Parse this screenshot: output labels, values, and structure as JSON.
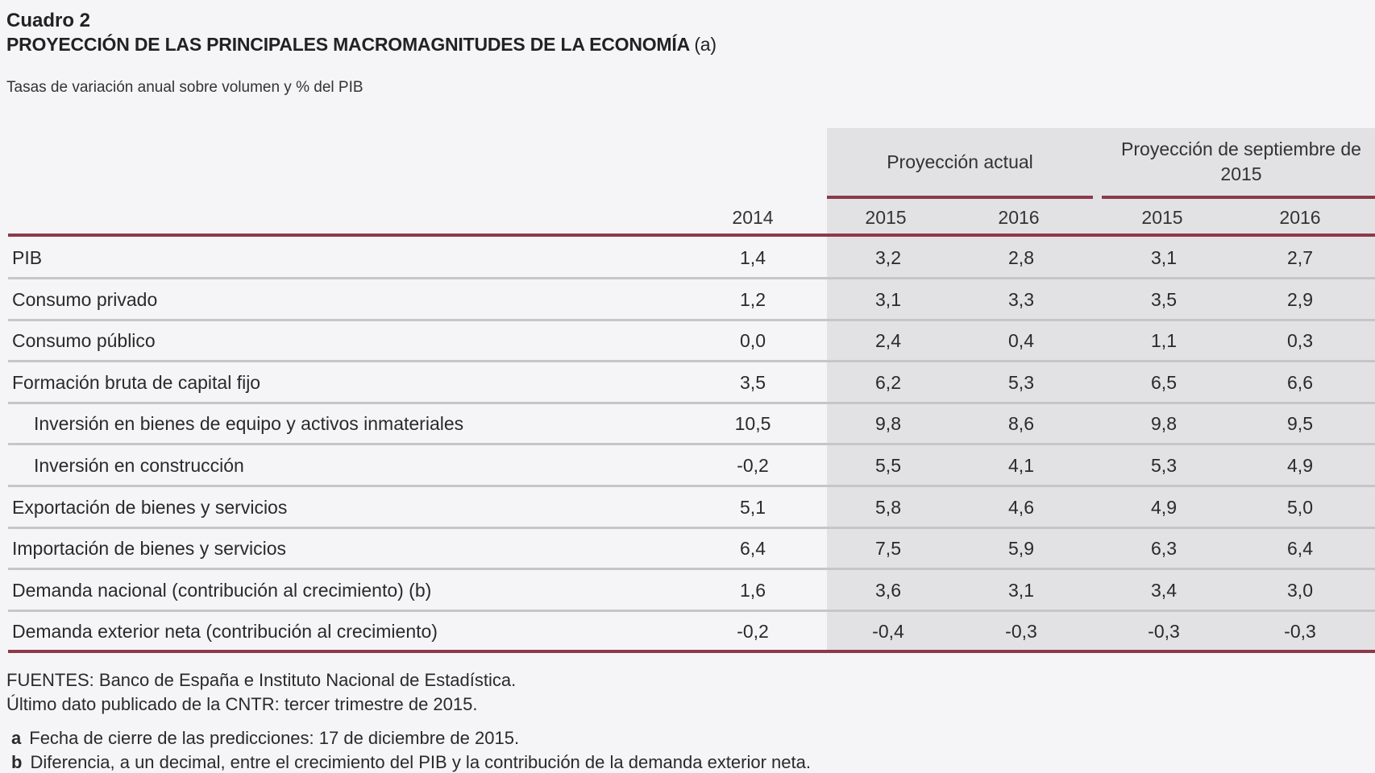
{
  "title": "Cuadro 2",
  "heading": "PROYECCIÓN DE LAS PRINCIPALES MACROMAGNITUDES DE LA ECONOMÍA",
  "heading_note": "(a)",
  "subtitle": "Tasas de variación anual sobre volumen y % del PIB",
  "groups": [
    "Proyección actual",
    "Proyección de septiembre de 2015"
  ],
  "columns": [
    "2014",
    "2015",
    "2016",
    "2015",
    "2016"
  ],
  "rows": [
    {
      "label": "PIB",
      "indent": false,
      "values": [
        "1,4",
        "3,2",
        "2,8",
        "3,1",
        "2,7"
      ]
    },
    {
      "label": "Consumo privado",
      "indent": false,
      "values": [
        "1,2",
        "3,1",
        "3,3",
        "3,5",
        "2,9"
      ]
    },
    {
      "label": "Consumo público",
      "indent": false,
      "values": [
        "0,0",
        "2,4",
        "0,4",
        "1,1",
        "0,3"
      ]
    },
    {
      "label": "Formación bruta de capital fijo",
      "indent": false,
      "values": [
        "3,5",
        "6,2",
        "5,3",
        "6,5",
        "6,6"
      ]
    },
    {
      "label": "Inversión en bienes de equipo y activos inmateriales",
      "indent": true,
      "values": [
        "10,5",
        "9,8",
        "8,6",
        "9,8",
        "9,5"
      ]
    },
    {
      "label": "Inversión en construcción",
      "indent": true,
      "values": [
        "-0,2",
        "5,5",
        "4,1",
        "5,3",
        "4,9"
      ]
    },
    {
      "label": "Exportación de bienes y servicios",
      "indent": false,
      "values": [
        "5,1",
        "5,8",
        "4,6",
        "4,9",
        "5,0"
      ]
    },
    {
      "label": "Importación de bienes y servicios",
      "indent": false,
      "values": [
        "6,4",
        "7,5",
        "5,9",
        "6,3",
        "6,4"
      ]
    },
    {
      "label": "Demanda nacional (contribución al crecimiento) (b)",
      "indent": false,
      "values": [
        "1,6",
        "3,6",
        "3,1",
        "3,4",
        "3,0"
      ]
    },
    {
      "label": "Demanda exterior neta (contribución al crecimiento)",
      "indent": false,
      "values": [
        "-0,2",
        "-0,4",
        "-0,3",
        "-0,3",
        "-0,3"
      ]
    }
  ],
  "sources": "FUENTES: Banco de España e Instituto Nacional de Estadística.",
  "last_data": "Último dato publicado de la CNTR: tercer trimestre de 2015.",
  "notes": [
    {
      "key": "a",
      "text": "Fecha de cierre de las predicciones: 17 de diciembre de 2015."
    },
    {
      "key": "b",
      "text": "Diferencia, a un decimal, entre el crecimiento del PIB y la contribución de la demanda exterior neta."
    }
  ],
  "colors": {
    "accent": "#8b3a4a",
    "shade": "#e2e2e4",
    "background": "#f5f5f7"
  }
}
